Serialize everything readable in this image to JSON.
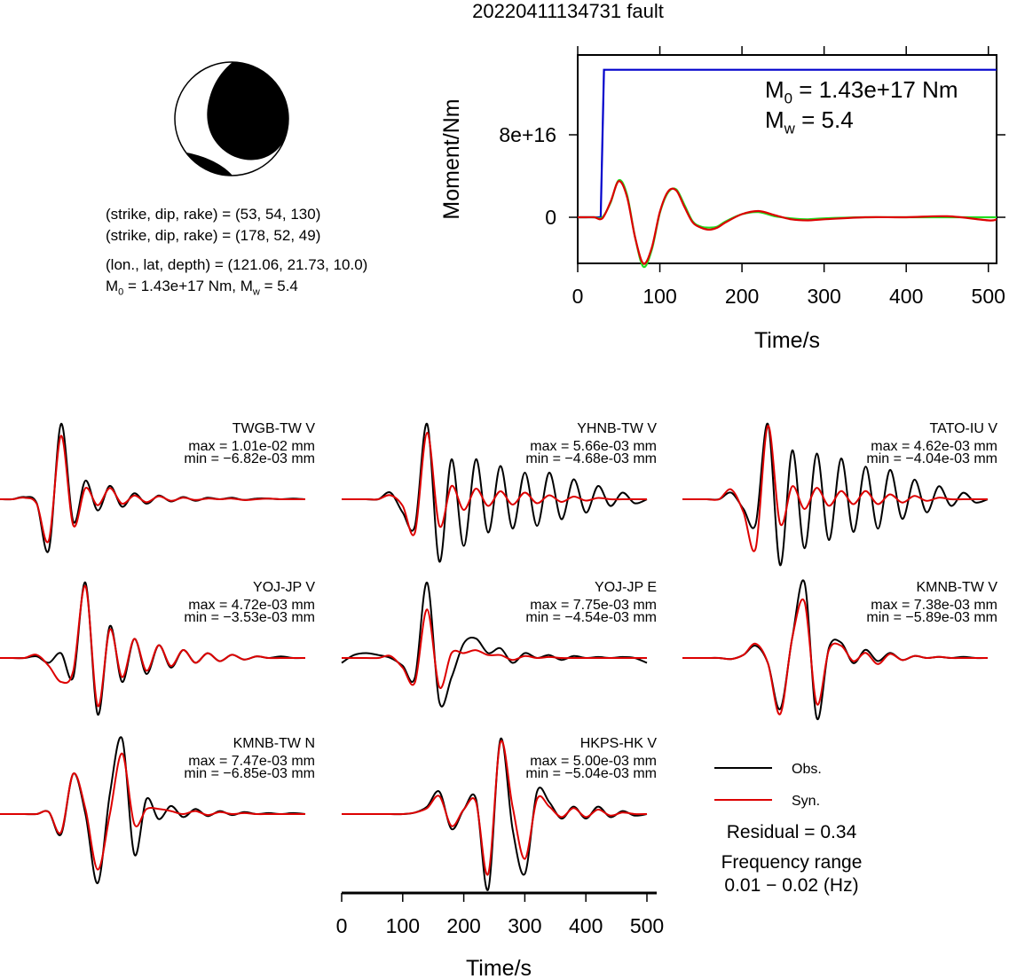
{
  "title": "20220411134731 fault",
  "focal": {
    "lines": [
      "(strike, dip, rake) = (53, 54, 130)",
      "(strike, dip, rake) = (178, 52, 49)",
      "(lon., lat, depth) = (121.06, 21.73, 10.0)"
    ],
    "moment": [
      {
        "m": "M",
        "sub": "0",
        "rest": " = 1.43e+17 Nm, "
      },
      {
        "m": "M",
        "sub": "w",
        "rest": " = 5.4"
      }
    ]
  },
  "chart_data": [
    {
      "type": "line",
      "ylabel": "Moment/Nm",
      "xlabel": "Time/s",
      "xlim": [
        0,
        510
      ],
      "ylim": [
        -4.47e+16,
        1.574e+17
      ],
      "xticks": [
        0,
        100,
        200,
        300,
        400,
        500
      ],
      "yticks": [
        0,
        {
          "value": 8e+16,
          "label": "8e+16"
        }
      ],
      "annotations": [
        {
          "m": "M",
          "sub": "0",
          "rest": " = 1.43e+17 Nm"
        },
        {
          "m": "M",
          "sub": "w",
          "rest": " = 5.4"
        }
      ],
      "series": [
        {
          "color": "#0000cc",
          "interpolation": "linear",
          "x": [
            0,
            28,
            32,
            510
          ],
          "values": [
            0,
            0,
            1.43e+17,
            1.43e+17
          ]
        },
        {
          "color": "#22dd22",
          "interpolation": "spline",
          "x": [
            0,
            10,
            20,
            30,
            40,
            50,
            60,
            70,
            80,
            90,
            100,
            110,
            120,
            130,
            140,
            150,
            160,
            170,
            180,
            200,
            220,
            240,
            260,
            280,
            300,
            350,
            400,
            450,
            500,
            510
          ],
          "values": [
            0,
            0,
            0,
            0,
            1.4e+16,
            3.6e+16,
            2.2e+16,
            -2e+16,
            -4.8e+16,
            -3.2e+16,
            4000000000000000.0,
            2.4e+16,
            2.7e+16,
            1.2e+16,
            -4000000000000000.0,
            -9000000000000000.0,
            -1e+16,
            -9000000000000000.0,
            -4000000000000000.0,
            3000000000000000.0,
            5000000000000000.0,
            1000000000000000.0,
            -1000000000000000.0,
            -2000000000000000.0,
            -1000000000000000.0,
            0,
            0,
            0,
            0,
            0
          ]
        },
        {
          "color": "#dd0000",
          "interpolation": "spline",
          "x": [
            0,
            10,
            20,
            30,
            40,
            50,
            60,
            70,
            80,
            90,
            100,
            110,
            120,
            130,
            140,
            150,
            160,
            170,
            180,
            200,
            220,
            240,
            260,
            280,
            300,
            350,
            400,
            450,
            500,
            510
          ],
          "values": [
            0,
            0,
            0,
            -1000000000000000.0,
            1.5e+16,
            3.5e+16,
            2e+16,
            -2e+16,
            -4.5e+16,
            -3e+16,
            5000000000000000.0,
            2.5e+16,
            2.6e+16,
            1e+16,
            -5000000000000000.0,
            -1e+16,
            -1.2e+16,
            -1e+16,
            -5000000000000000.0,
            3000000000000000.0,
            6000000000000000.0,
            2000000000000000.0,
            -2000000000000000.0,
            -3000000000000000.0,
            -2000000000000000.0,
            0,
            0,
            1000000000000000.0,
            -3000000000000000.0,
            -2000000000000000.0
          ]
        }
      ]
    },
    {
      "type": "waveform",
      "xlabel": "Time/s",
      "xlim": [
        0,
        510
      ],
      "xticks": [
        0,
        100,
        200,
        300,
        400,
        500
      ],
      "series": [
        {
          "name": "Obs.",
          "color": "#000000"
        },
        {
          "name": "Syn.",
          "color": "#dd0000"
        }
      ],
      "x": [
        0,
        20,
        40,
        60,
        80,
        100,
        120,
        140,
        160,
        180,
        200,
        220,
        240,
        260,
        280,
        300,
        320,
        340,
        360,
        380,
        400,
        420,
        440,
        460,
        480,
        500
      ],
      "panels": [
        {
          "station": "TWGB-TW V",
          "max": 0.0101,
          "max_label": "max = 1.01e-02 mm",
          "min": -0.00682,
          "min_label": "min = −6.82e-03 mm",
          "obs": [
            0,
            0,
            0.0003,
            -0.0005,
            -0.0068,
            0.0101,
            -0.003,
            0.0025,
            -0.0015,
            0.0018,
            -0.001,
            0.0008,
            -0.0006,
            0.0005,
            -0.0003,
            0.0003,
            -0.0002,
            0.0002,
            0,
            0.0002,
            -0.0001,
            0.0001,
            0.0001,
            0,
            0.0001,
            0
          ],
          "syn": [
            0,
            0,
            0.0002,
            -0.0006,
            -0.0055,
            0.0085,
            -0.0035,
            0.0015,
            -0.0008,
            0.0015,
            -0.0006,
            0.0005,
            -0.0004,
            0.0004,
            -0.0002,
            0.0002,
            -0.0001,
            0.0001,
            0,
            0.0001,
            -0.0001,
            0,
            0.0001,
            0,
            0,
            0
          ]
        },
        {
          "station": "YHNB-TW V",
          "max": 0.00566,
          "max_label": "max = 5.66e-03 mm",
          "min": -0.00468,
          "min_label": "min = −4.68e-03 mm",
          "obs": [
            0,
            0,
            0,
            0,
            0.0005,
            -0.001,
            -0.002,
            0.00566,
            -0.00468,
            0.003,
            -0.0035,
            0.003,
            -0.0025,
            0.0025,
            -0.0022,
            0.002,
            -0.002,
            0.002,
            -0.0015,
            0.0015,
            -0.001,
            0.001,
            -0.0005,
            0.0005,
            -0.0003,
            0
          ],
          "syn": [
            0,
            0,
            0,
            0,
            0.0003,
            -0.0005,
            -0.0025,
            0.005,
            -0.002,
            0.001,
            -0.0008,
            0.0008,
            -0.0005,
            0.0006,
            -0.0004,
            0.0005,
            -0.0003,
            0.0003,
            -0.0002,
            0.0002,
            -0.0001,
            0.0001,
            0,
            0,
            0,
            0
          ]
        },
        {
          "station": "TATO-IU V",
          "max": 0.00462,
          "max_label": "max = 4.62e-03 mm",
          "min": -0.00404,
          "min_label": "min = −4.04e-03 mm",
          "obs": [
            0,
            0,
            0,
            0,
            0.0004,
            -0.0006,
            -0.0015,
            0.00462,
            -0.00404,
            0.003,
            -0.003,
            0.0028,
            -0.0025,
            0.0025,
            -0.002,
            0.002,
            -0.0018,
            0.0018,
            -0.0012,
            0.0012,
            -0.0008,
            0.0008,
            -0.0004,
            0.0004,
            -0.0002,
            0
          ],
          "syn": [
            0,
            0,
            0,
            0,
            0.0006,
            -0.0008,
            -0.003,
            0.0045,
            -0.0015,
            0.0008,
            -0.0006,
            0.0007,
            -0.0004,
            0.0005,
            -0.0003,
            0.0005,
            -0.0003,
            0.0003,
            -0.0002,
            0.0002,
            -0.0001,
            0.0001,
            0,
            0,
            0,
            0
          ]
        },
        {
          "station": "YOJ-JP V",
          "max": 0.00472,
          "max_label": "max = 4.72e-03 mm",
          "min": -0.00353,
          "min_label": "min = −3.53e-03 mm",
          "obs": [
            0,
            0,
            0,
            0.0001,
            -0.0003,
            0.0003,
            -0.0012,
            0.00472,
            -0.00353,
            0.002,
            -0.0015,
            0.0012,
            -0.001,
            0.0008,
            -0.0006,
            0.0005,
            -0.0003,
            0.0003,
            -0.0002,
            0.0002,
            -0.0001,
            0.0001,
            0,
            0.0001,
            0,
            0
          ],
          "syn": [
            0,
            0,
            0,
            0.0002,
            -0.0005,
            -0.0015,
            -0.0008,
            0.0045,
            -0.003,
            0.0018,
            -0.0012,
            0.0012,
            -0.0008,
            0.0008,
            -0.0005,
            0.0005,
            -0.0003,
            0.0003,
            -0.0002,
            0.0002,
            -0.0001,
            0.0001,
            0,
            0,
            0,
            0
          ]
        },
        {
          "station": "YOJ-JP E",
          "max": 0.00775,
          "max_label": "max = 7.75e-03 mm",
          "min": -0.00454,
          "min_label": "min = −4.54e-03 mm",
          "obs": [
            -0.0005,
            0.0003,
            0.0005,
            0.0003,
            0,
            -0.0008,
            -0.002,
            0.00775,
            -0.00454,
            -0.002,
            0.0015,
            0.002,
            0.0005,
            0.001,
            -0.0005,
            0.0005,
            0,
            0.0003,
            -0.0002,
            0.0002,
            0,
            0.0001,
            0,
            0.0001,
            0,
            -0.0005
          ],
          "syn": [
            0,
            0,
            0,
            0,
            0.0002,
            -0.001,
            -0.0025,
            0.005,
            -0.003,
            0.0005,
            0.0005,
            0.0008,
            0.0003,
            0.0003,
            -0.0002,
            0.0002,
            0,
            0.0001,
            0,
            0,
            0,
            0,
            0,
            0,
            0,
            0
          ]
        },
        {
          "station": "KMNB-TW V",
          "max": 0.00738,
          "max_label": "max = 7.38e-03 mm",
          "min": -0.00589,
          "min_label": "min = −5.89e-03 mm",
          "obs": [
            0,
            0,
            0,
            0,
            -0.0001,
            0.0003,
            0.0012,
            -0.0005,
            -0.005,
            0.002,
            0.00738,
            -0.00589,
            0.001,
            0.0015,
            -0.0005,
            0.0008,
            -0.0003,
            0.0005,
            -0.0002,
            0.0002,
            0,
            0.0001,
            0,
            0.0001,
            0,
            0
          ],
          "syn": [
            0,
            0,
            0,
            0,
            -0.0001,
            0.0003,
            0.0014,
            -0.0005,
            -0.0055,
            0.002,
            0.0055,
            -0.0045,
            0.0008,
            0.0012,
            -0.0003,
            0.0005,
            -0.0006,
            0.0004,
            -0.0002,
            0.0002,
            0,
            0.0001,
            0,
            0,
            0,
            0
          ]
        },
        {
          "station": "KMNB-TW N",
          "max": 0.00747,
          "max_label": "max = 7.47e-03 mm",
          "min": -0.00685,
          "min_label": "min = −6.85e-03 mm",
          "obs": [
            0,
            0,
            0,
            0,
            0.0002,
            -0.002,
            0.004,
            0,
            -0.00685,
            0.002,
            0.00747,
            -0.004,
            0.0015,
            -0.0005,
            0.0008,
            -0.0003,
            0.0005,
            -0.0002,
            0.0003,
            -0.0001,
            0.0002,
            0,
            0.0001,
            0,
            0.0001,
            0
          ],
          "syn": [
            0,
            0,
            0,
            0,
            0.0002,
            -0.0018,
            0.004,
            0.0005,
            -0.0055,
            0,
            0.006,
            -0.001,
            0.0005,
            0.0005,
            0.0003,
            0,
            0.0003,
            -0.0001,
            0.0002,
            0,
            0.0001,
            0,
            0,
            0,
            0,
            0
          ]
        },
        {
          "station": "HKPS-HK V",
          "max": 0.005,
          "max_label": "max = 5.00e-03 mm",
          "min": -0.00504,
          "min_label": "min = −5.04e-03 mm",
          "obs": [
            0,
            0,
            0,
            0,
            0,
            0,
            0.0001,
            0.0005,
            0.0015,
            -0.001,
            0.0003,
            0.001,
            -0.00504,
            0.005,
            -0.001,
            -0.004,
            0.0015,
            0.0008,
            -0.0003,
            0.0005,
            -0.0003,
            0.0005,
            -0.0002,
            0.0002,
            -0.0001,
            0
          ],
          "syn": [
            0,
            0,
            0,
            0,
            0,
            0,
            0.0001,
            0.0004,
            0.0012,
            -0.0008,
            0.0003,
            0.0008,
            -0.004,
            0.0048,
            0.0005,
            -0.003,
            0.001,
            0.0005,
            -0.0002,
            0.0004,
            -0.0002,
            0.0003,
            -0.0001,
            0.0001,
            0,
            0
          ]
        }
      ],
      "notes": [
        "Residual = 0.34",
        "Frequency range",
        "0.01 − 0.02 (Hz)"
      ]
    }
  ]
}
